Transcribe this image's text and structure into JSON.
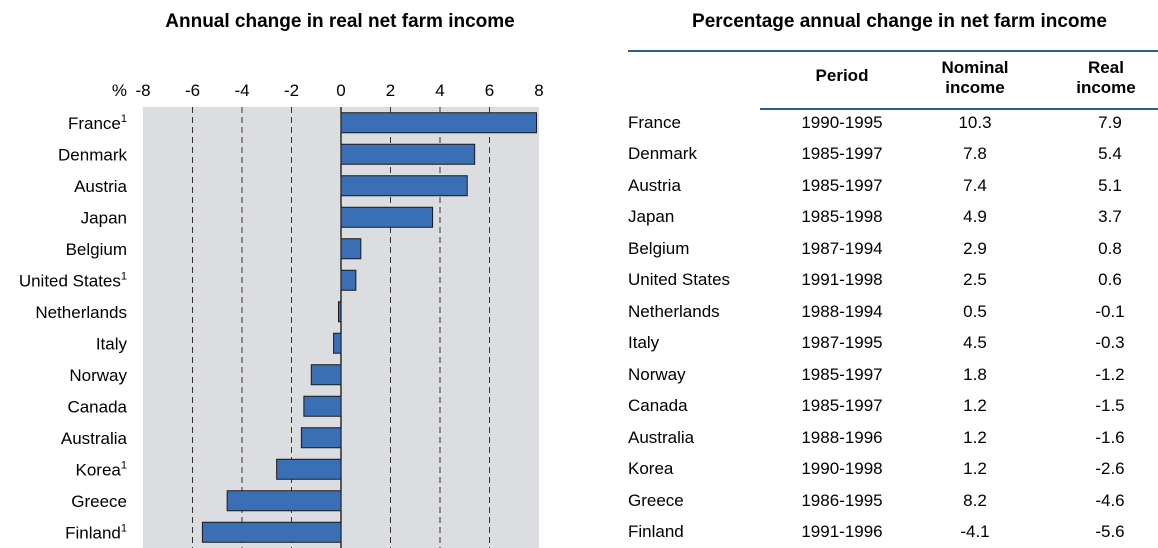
{
  "chart_data": {
    "type": "bar",
    "orientation": "horizontal",
    "title": "Annual change in real net farm income",
    "xlabel": "%",
    "xlim": [
      -8,
      8
    ],
    "xticks": [
      "-8",
      "-6",
      "-4",
      "-2",
      "0",
      "2",
      "4",
      "6",
      "8"
    ],
    "grid": true,
    "categories": [
      "France",
      "Denmark",
      "Austria",
      "Japan",
      "Belgium",
      "United States",
      "Netherlands",
      "Italy",
      "Norway",
      "Canada",
      "Australia",
      "Korea",
      "Greece",
      "Finland"
    ],
    "footnotes": [
      "1",
      "",
      "",
      "",
      "",
      "1",
      "",
      "",
      "",
      "",
      "",
      "1",
      "",
      "1"
    ],
    "values": [
      7.9,
      5.4,
      5.1,
      3.7,
      0.8,
      0.6,
      -0.1,
      -0.3,
      -1.2,
      -1.5,
      -1.6,
      -2.6,
      -4.6,
      -5.6
    ],
    "colors": {
      "bar": "#3a6fb5",
      "bar_border": "#1a1a1a",
      "plot_bg": "#dcdde0"
    }
  },
  "table": {
    "title": "Percentage annual change in net farm income",
    "headers": {
      "period": "Period",
      "nominal_1": "Nominal",
      "nominal_2": "income",
      "real_1": "Real",
      "real_2": "income"
    },
    "rows": [
      {
        "country": "France",
        "period": "1990-1995",
        "nominal": "10.3",
        "real": "7.9"
      },
      {
        "country": "Denmark",
        "period": "1985-1997",
        "nominal": "7.8",
        "real": "5.4"
      },
      {
        "country": "Austria",
        "period": "1985-1997",
        "nominal": "7.4",
        "real": "5.1"
      },
      {
        "country": "Japan",
        "period": "1985-1998",
        "nominal": "4.9",
        "real": "3.7"
      },
      {
        "country": "Belgium",
        "period": "1987-1994",
        "nominal": "2.9",
        "real": "0.8"
      },
      {
        "country": "United States",
        "period": "1991-1998",
        "nominal": "2.5",
        "real": "0.6"
      },
      {
        "country": "Netherlands",
        "period": "1988-1994",
        "nominal": "0.5",
        "real": "-0.1"
      },
      {
        "country": "Italy",
        "period": "1987-1995",
        "nominal": "4.5",
        "real": "-0.3"
      },
      {
        "country": "Norway",
        "period": "1985-1997",
        "nominal": "1.8",
        "real": "-1.2"
      },
      {
        "country": "Canada",
        "period": "1985-1997",
        "nominal": "1.2",
        "real": "-1.5"
      },
      {
        "country": "Australia",
        "period": "1988-1996",
        "nominal": "1.2",
        "real": "-1.6"
      },
      {
        "country": "Korea",
        "period": "1990-1998",
        "nominal": "1.2",
        "real": "-2.6"
      },
      {
        "country": "Greece",
        "period": "1986-1995",
        "nominal": "8.2",
        "real": "-4.6"
      },
      {
        "country": "Finland",
        "period": "1991-1996",
        "nominal": "-4.1",
        "real": "-5.6"
      }
    ]
  }
}
